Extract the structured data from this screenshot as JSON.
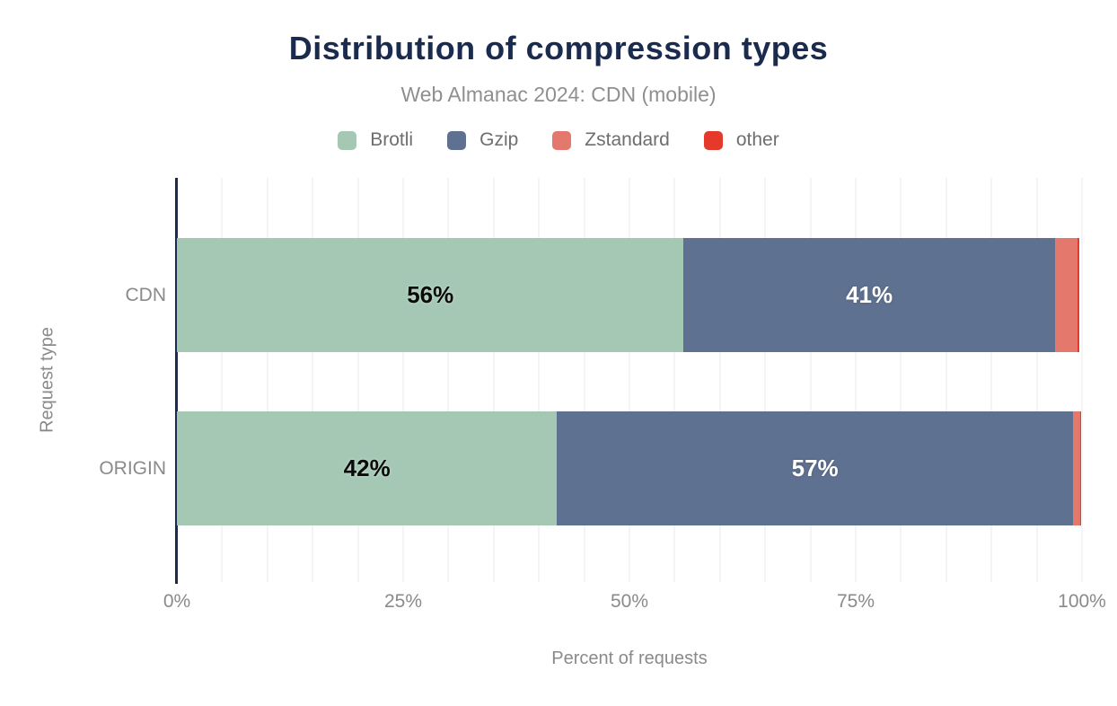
{
  "chart_data": {
    "type": "bar",
    "orientation": "horizontal",
    "stacked": true,
    "title": "Distribution of compression types",
    "subtitle": "Web Almanac 2024: CDN (mobile)",
    "categories": [
      "CDN",
      "ORIGIN"
    ],
    "series": [
      {
        "name": "Brotli",
        "color": "#a5c8b5",
        "values": [
          56,
          42
        ],
        "label_style": "dark"
      },
      {
        "name": "Gzip",
        "color": "#5f7190",
        "values": [
          41,
          57
        ],
        "label_style": "light"
      },
      {
        "name": "Zstandard",
        "color": "#e5786d",
        "values": [
          2.5,
          0.8
        ],
        "label_style": "light"
      },
      {
        "name": "other",
        "color": "#e5392c",
        "values": [
          0.2,
          0.1
        ],
        "label_style": "light"
      }
    ],
    "data_labels": {
      "visible": [
        "56%",
        "41%",
        "42%",
        "57%"
      ],
      "min_value_to_show": 5,
      "format": "{v}%"
    },
    "xlabel": "Percent of requests",
    "ylabel": "Request type",
    "x_ticks": [
      "0%",
      "25%",
      "50%",
      "75%",
      "100%"
    ],
    "x_tick_values": [
      0,
      25,
      50,
      75,
      100
    ],
    "x_range": [
      0,
      100
    ],
    "gridline_step": 5,
    "grid": true,
    "legend_position": "top"
  },
  "colors": {
    "title": "#1b2b4d",
    "subtitle": "#8f8f8f",
    "axis_line": "#1b2b4d",
    "gridline": "#f4f4f4",
    "tick_text": "#8a8a8a",
    "legend_text": "#6e6e6e",
    "background": "#ffffff"
  }
}
